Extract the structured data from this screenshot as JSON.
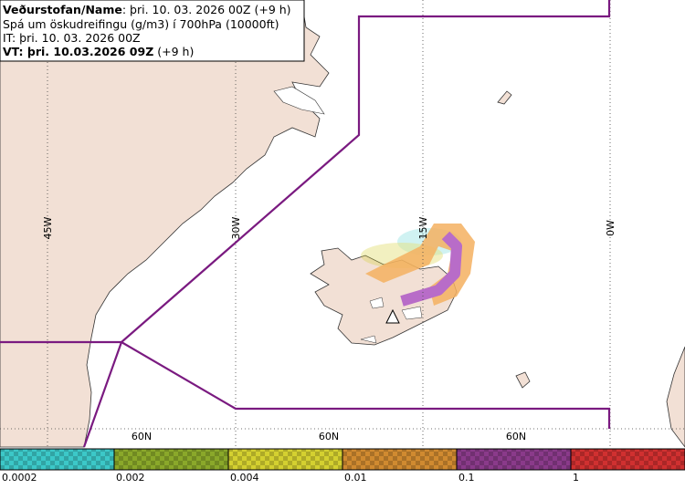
{
  "header": {
    "line1_bold": "Veðurstofan/Name",
    "line1_rest": ": þri. 10. 03. 2026 00Z (+9 h)",
    "line2": "Spá um öskudreifingu (g/m3) í 700hPa (10000ft)",
    "line3": "IT: þri. 10. 03. 2026 00Z",
    "line4_bold": "VT: þri. 10.03.2026 09Z",
    "line4_rest": " (+9 h)"
  },
  "graticule": {
    "longitudes": [
      "45W",
      "30W",
      "15W",
      "0W"
    ],
    "latitudes": [
      "60N",
      "60N",
      "60N"
    ]
  },
  "legend": {
    "items": [
      {
        "label": "0.0002",
        "color": "#3cc8c8"
      },
      {
        "label": "0.002",
        "color": "#8aa82a"
      },
      {
        "label": "0.004",
        "color": "#d4d030"
      },
      {
        "label": "0.01",
        "color": "#d08a30"
      },
      {
        "label": "0.1",
        "color": "#8a3a8a"
      },
      {
        "label": "1",
        "color": "#d03030"
      }
    ]
  }
}
